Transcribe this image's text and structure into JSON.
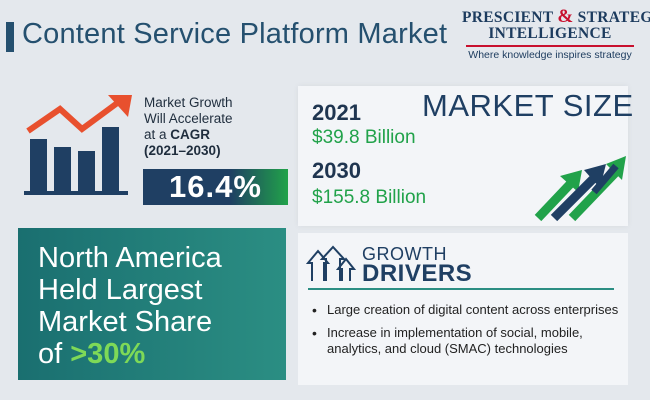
{
  "header": {
    "title": "Content Service Platform Market"
  },
  "logo": {
    "line1_part1": "PRESCIENT",
    "ampersand": "&",
    "line1_part2": "STRATEGIC",
    "line2": "INTELLIGENCE",
    "tagline": "Where knowledge inspires strategy"
  },
  "growth": {
    "text_line1": "Market Growth",
    "text_line2": "Will Accelerate",
    "text_line3_prefix": "at a ",
    "text_line3_bold": "CAGR",
    "text_line4": "(2021–2030)",
    "cagr_value": "16.4%",
    "icon": "bar-chart-growth-icon"
  },
  "market_size": {
    "title": "MARKET SIZE",
    "entries": [
      {
        "year": "2021",
        "value": "$39.8 Billion"
      },
      {
        "year": "2030",
        "value": "$155.8 Billion"
      }
    ],
    "icon": "growth-arrows-icon"
  },
  "region": {
    "line1": "North America",
    "line2": "Held Largest",
    "line3": "Market Share",
    "line4_prefix": "of ",
    "share": ">30%"
  },
  "drivers": {
    "title_line1": "GROWTH",
    "title_line2": "DRIVERS",
    "icon": "up-arrows-icon",
    "items": [
      "Large creation of digital content across enterprises",
      "Increase in implementation of social, mobile, analytics, and cloud (SMAC) technologies"
    ]
  },
  "colors": {
    "navy": "#1f3f63",
    "green": "#21a24a",
    "teal": "#2b8e83",
    "red": "#c8102e",
    "background": "#e4e8ed"
  }
}
